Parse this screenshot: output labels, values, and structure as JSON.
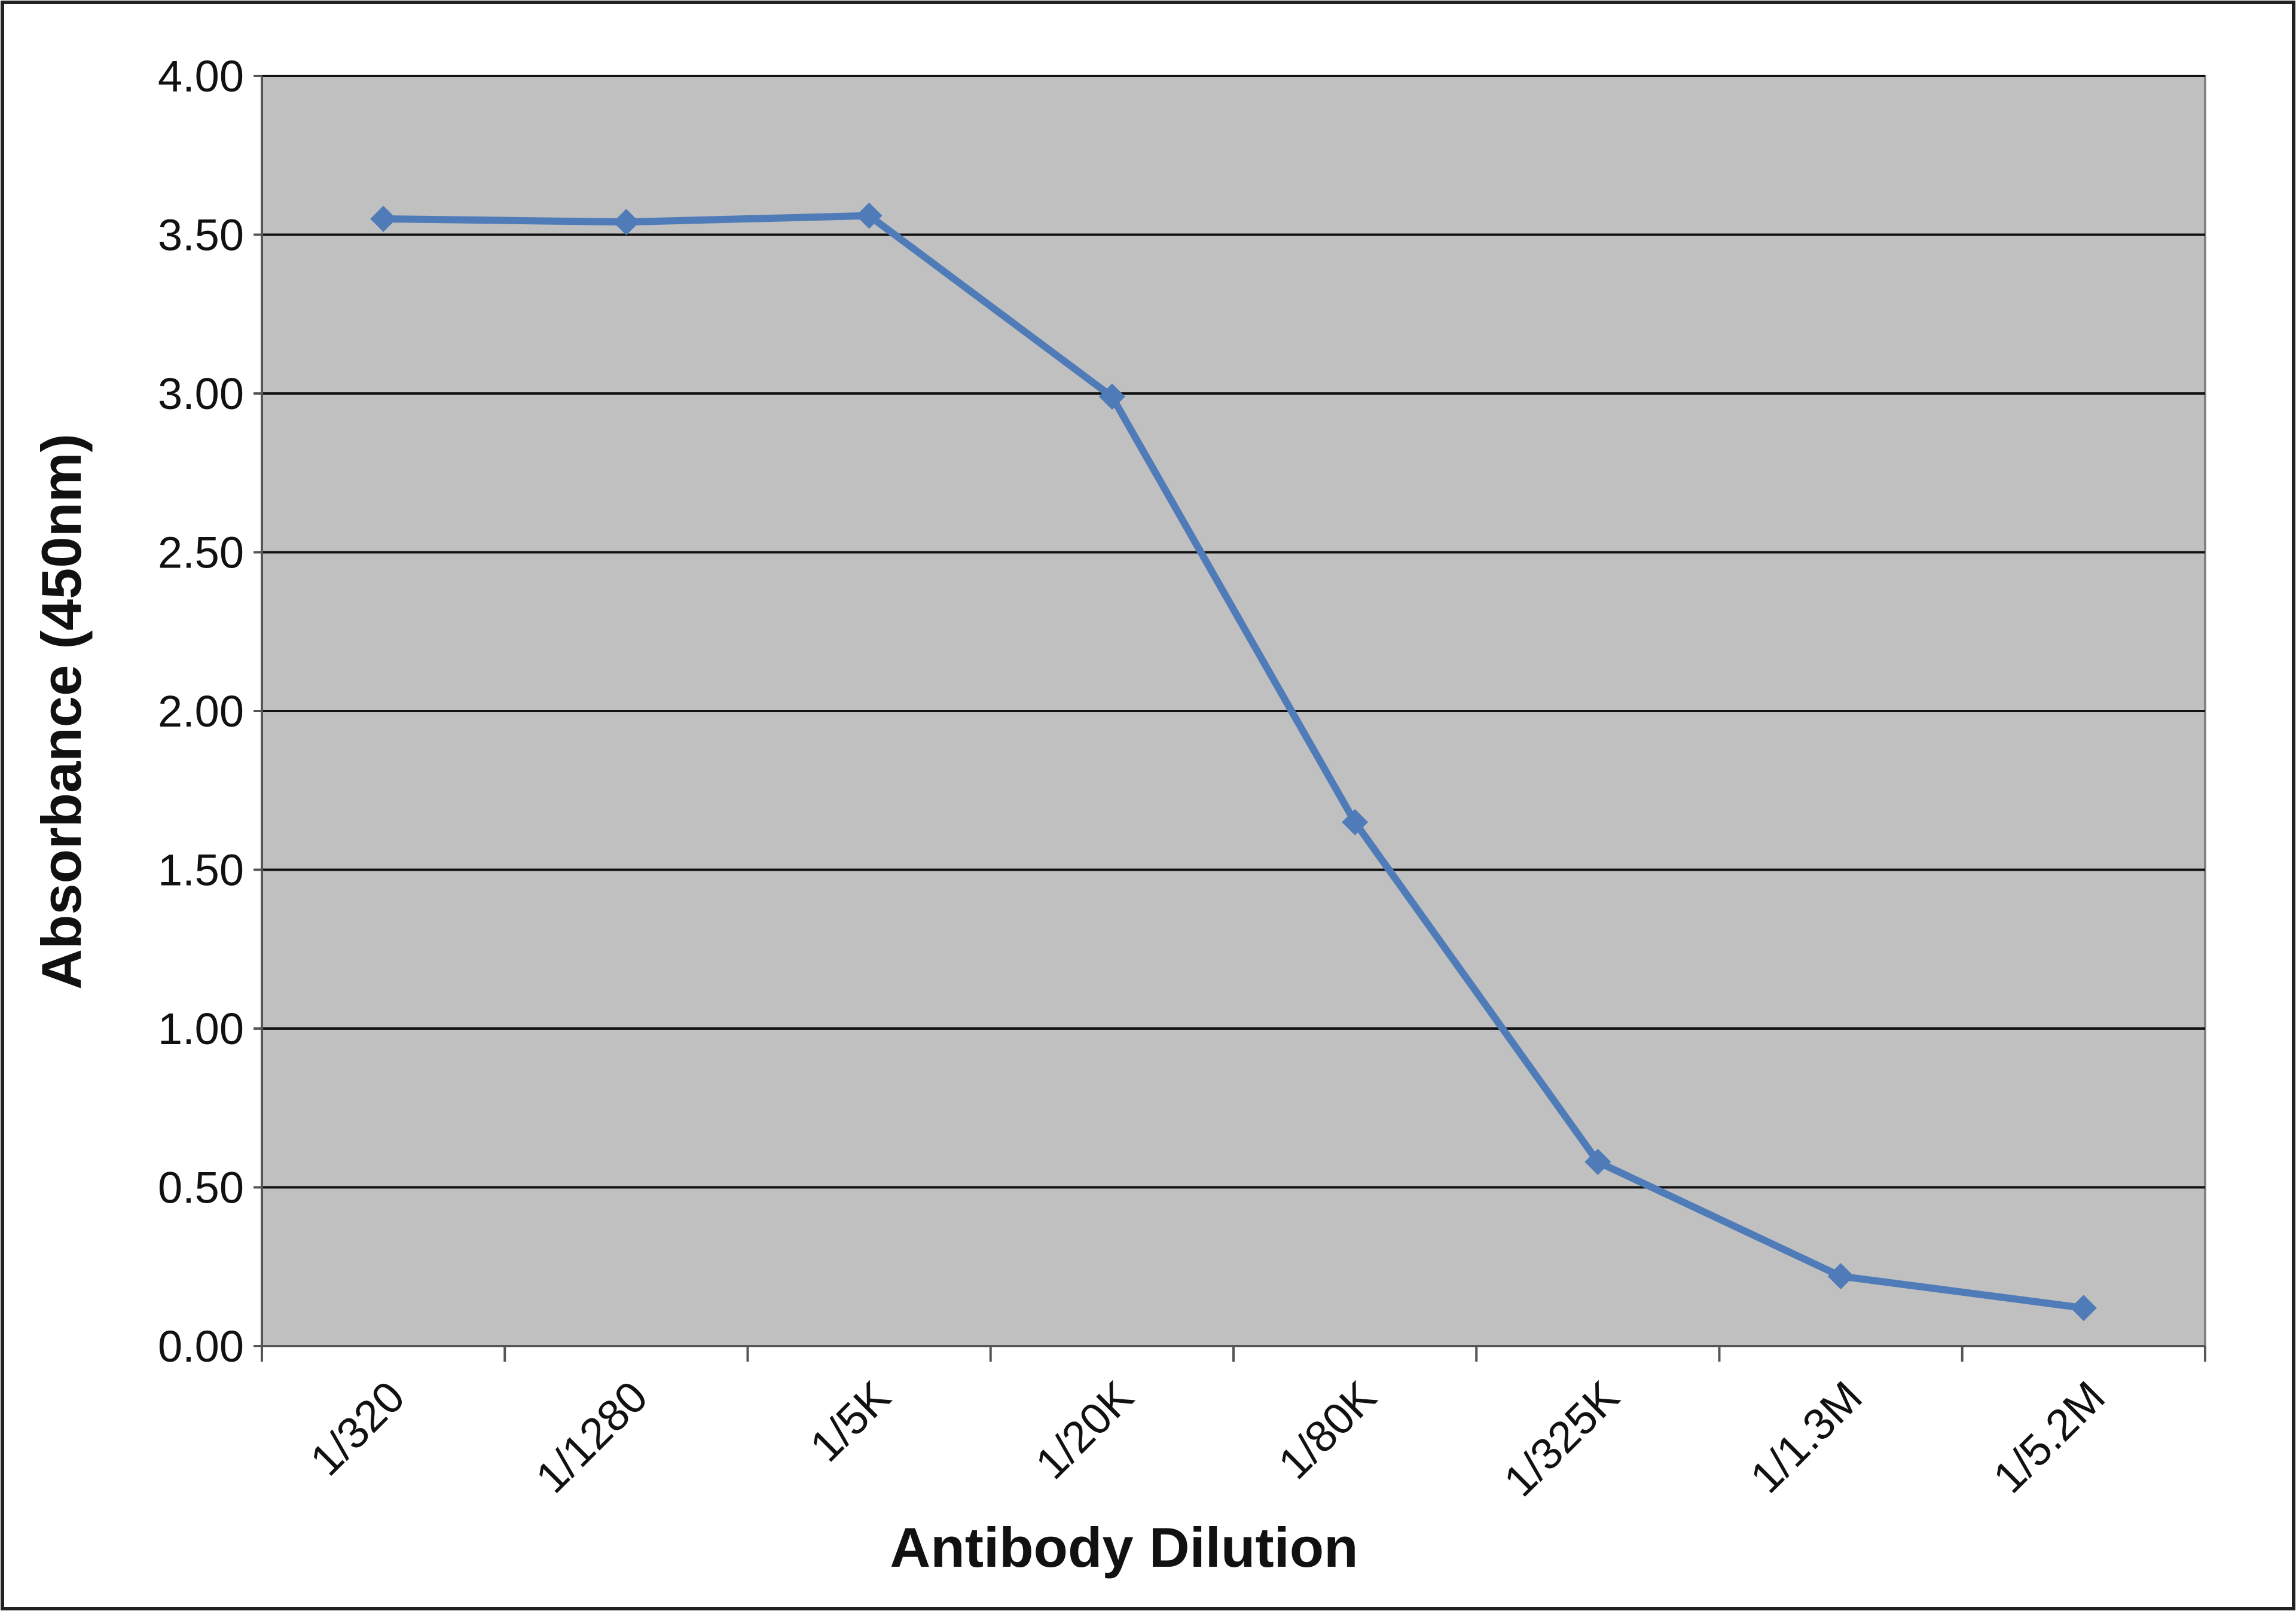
{
  "chart_data": {
    "type": "line",
    "x_label": "Antibody Dilution",
    "y_label": "Absorbance (450nm)",
    "categories": [
      "1/320",
      "1/1280",
      "1/5K",
      "1/20K",
      "1/80K",
      "1/325K",
      "1/1.3M",
      "1/5.2M"
    ],
    "series": [
      {
        "color": "#4f7cb8",
        "values": [
          3.55,
          3.54,
          3.56,
          2.99,
          1.65,
          0.58,
          0.22,
          0.12
        ]
      }
    ],
    "ylim": [
      0,
      4
    ],
    "yticks": [
      {
        "value": 0,
        "label": "0.00"
      },
      {
        "value": 0.5,
        "label": "0.50"
      },
      {
        "value": 1,
        "label": "1.00"
      },
      {
        "value": 1.5,
        "label": "1.50"
      },
      {
        "value": 2,
        "label": "2.00"
      },
      {
        "value": 2.5,
        "label": "2.50"
      },
      {
        "value": 3,
        "label": "3.00"
      },
      {
        "value": 3.5,
        "label": "3.50"
      },
      {
        "value": 4,
        "label": "4.00"
      }
    ],
    "grid": true
  }
}
